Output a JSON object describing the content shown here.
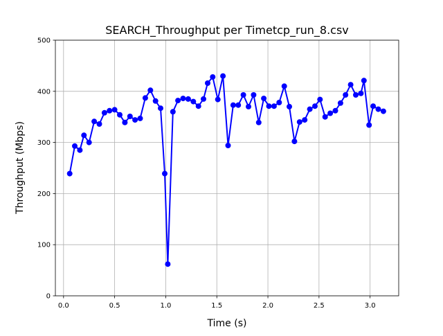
{
  "chart_data": {
    "type": "line",
    "title": "SEARCH_Throughput per Timetcp_run_8.csv",
    "xlabel": "Time (s)",
    "ylabel": "Throughput (Mbps)",
    "xlim": [
      -0.08,
      3.28
    ],
    "ylim": [
      0,
      500
    ],
    "xticks": [
      0.0,
      0.5,
      1.0,
      1.5,
      2.0,
      2.5,
      3.0
    ],
    "xtick_labels": [
      "0.0",
      "0.5",
      "1.0",
      "1.5",
      "2.0",
      "2.5",
      "3.0"
    ],
    "yticks": [
      0,
      100,
      200,
      300,
      400,
      500
    ],
    "ytick_labels": [
      "0",
      "100",
      "200",
      "300",
      "400",
      "500"
    ],
    "grid": true,
    "series": [
      {
        "color": "#0000ff",
        "marker": "circle",
        "x": [
          0.06,
          0.11,
          0.16,
          0.2,
          0.25,
          0.3,
          0.35,
          0.4,
          0.45,
          0.5,
          0.55,
          0.6,
          0.65,
          0.7,
          0.75,
          0.8,
          0.85,
          0.9,
          0.95,
          0.99,
          1.02,
          1.07,
          1.12,
          1.17,
          1.22,
          1.27,
          1.32,
          1.37,
          1.41,
          1.46,
          1.51,
          1.56,
          1.61,
          1.66,
          1.71,
          1.76,
          1.81,
          1.86,
          1.91,
          1.96,
          2.01,
          2.06,
          2.11,
          2.16,
          2.21,
          2.26,
          2.31,
          2.36,
          2.41,
          2.46,
          2.51,
          2.56,
          2.61,
          2.66,
          2.71,
          2.76,
          2.81,
          2.86,
          2.91,
          2.94,
          2.99,
          3.03,
          3.08,
          3.13
        ],
        "y": [
          239,
          293,
          285,
          314,
          300,
          341,
          336,
          358,
          362,
          364,
          354,
          339,
          351,
          344,
          347,
          387,
          402,
          381,
          367,
          239,
          62,
          360,
          382,
          386,
          385,
          380,
          371,
          385,
          416,
          428,
          384,
          430,
          294,
          373,
          373,
          393,
          370,
          393,
          339,
          386,
          371,
          371,
          378,
          410,
          370,
          302,
          340,
          344,
          365,
          371,
          384,
          350,
          357,
          362,
          377,
          393,
          413,
          393,
          396,
          421,
          334,
          371,
          365,
          361
        ]
      }
    ]
  }
}
